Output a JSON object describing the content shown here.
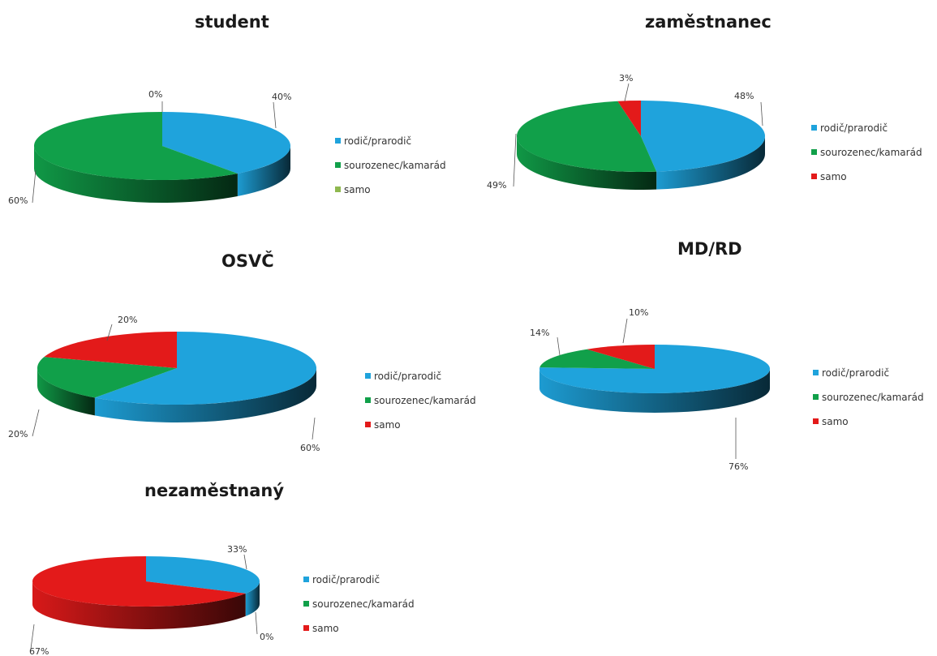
{
  "colors": {
    "blue": "#1fa3dc",
    "green": "#11a04a",
    "red": "#e31a1a",
    "olive": "#8fb84f"
  },
  "chart_data": [
    {
      "type": "pie",
      "title": "student",
      "categories": [
        "rodič/prarodič",
        "sourozenec/kamarád",
        "samo"
      ],
      "values": [
        40,
        60,
        0
      ],
      "data_labels": [
        "40%",
        "60%",
        "0%"
      ],
      "legend": [
        "rodič/prarodič",
        "sourozenec/kamarád",
        "samo"
      ],
      "legend_colors": [
        "#1fa3dc",
        "#11a04a",
        "#8fb84f"
      ],
      "legend_position": "right"
    },
    {
      "type": "pie",
      "title": "zaměstnanec",
      "categories": [
        "rodič/prarodič",
        "sourozenec/kamarád",
        "samo"
      ],
      "values": [
        48,
        49,
        3
      ],
      "data_labels": [
        "48%",
        "49%",
        "3%"
      ],
      "legend": [
        "rodič/prarodič",
        "sourozenec/kamarád",
        "samo"
      ],
      "legend_colors": [
        "#1fa3dc",
        "#11a04a",
        "#e31a1a"
      ],
      "legend_position": "right"
    },
    {
      "type": "pie",
      "title": "OSVČ",
      "categories": [
        "rodič/prarodič",
        "sourozenec/kamarád",
        "samo"
      ],
      "values": [
        60,
        20,
        20
      ],
      "data_labels": [
        "60%",
        "20%",
        "20%"
      ],
      "legend": [
        "rodič/prarodič",
        "sourozenec/kamarád",
        "samo"
      ],
      "legend_colors": [
        "#1fa3dc",
        "#11a04a",
        "#e31a1a"
      ],
      "legend_position": "right"
    },
    {
      "type": "pie",
      "title": "MD/RD",
      "categories": [
        "rodič/prarodič",
        "sourozenec/kamarád",
        "samo"
      ],
      "values": [
        76,
        14,
        10
      ],
      "data_labels": [
        "76%",
        "14%",
        "10%"
      ],
      "legend": [
        "rodič/prarodič",
        "sourozenec/kamarád",
        "samo"
      ],
      "legend_colors": [
        "#1fa3dc",
        "#11a04a",
        "#e31a1a"
      ],
      "legend_position": "right"
    },
    {
      "type": "pie",
      "title": "nezaměstnaný",
      "categories": [
        "rodič/prarodič",
        "sourozenec/kamarád",
        "samo"
      ],
      "values": [
        33,
        0,
        67
      ],
      "data_labels": [
        "33%",
        "0%",
        "67%"
      ],
      "legend": [
        "rodič/prarodič",
        "sourozenec/kamarád",
        "samo"
      ],
      "legend_colors": [
        "#1fa3dc",
        "#11a04a",
        "#e31a1a"
      ],
      "legend_position": "right"
    }
  ]
}
